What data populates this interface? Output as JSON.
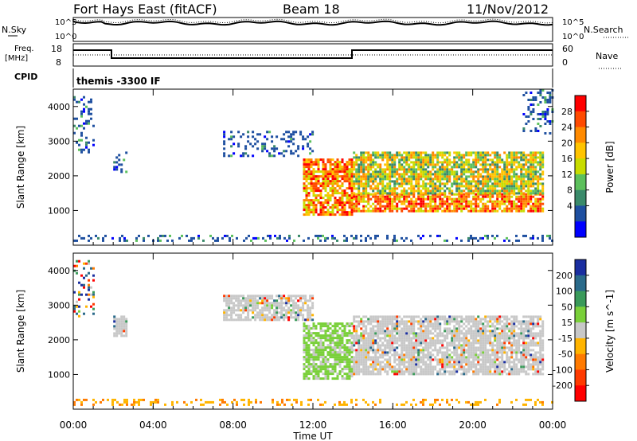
{
  "header": {
    "title": "Fort Hays East (fitACF)",
    "beam": "Beam 18",
    "date": "11/Nov/2012"
  },
  "noise_panel": {
    "left_label": "N.Sky",
    "right_label": "N.Search",
    "left_ticks": [
      "10^5",
      "10^0"
    ],
    "right_ticks": [
      "10^5",
      "10^0"
    ]
  },
  "freq_panel": {
    "left_label": "Freq.",
    "left_unit": "[MHz]",
    "right_label": "Nave",
    "left_ticks": [
      "18",
      "8"
    ],
    "right_ticks": [
      "60",
      "0"
    ]
  },
  "cpid_panel": {
    "label": "CPID",
    "program": "themis -3300 IF"
  },
  "x_axis": {
    "label": "Time UT",
    "ticks": [
      "00:00",
      "04:00",
      "08:00",
      "12:00",
      "16:00",
      "20:00",
      "00:00"
    ]
  },
  "chart_data": [
    {
      "type": "heatmap",
      "name": "power",
      "ylabel": "Slant Range [km]",
      "yticks": [
        1000,
        2000,
        3000,
        4000
      ],
      "ylim": [
        0,
        4500
      ],
      "xlim_hours": [
        0,
        24
      ],
      "colorbar": {
        "label": "Power [dB]",
        "ticks": [
          "28",
          "24",
          "20",
          "16",
          "12",
          "8",
          "4"
        ],
        "colors": [
          "#ff0000",
          "#ff4a00",
          "#ff8a00",
          "#ffc400",
          "#c8dc00",
          "#5cc05c",
          "#3a8a6a",
          "#1e4fa0",
          "#0000ff"
        ]
      },
      "regions": [
        {
          "t": [
            0.0,
            1.0
          ],
          "r": [
            2700,
            4300
          ],
          "level": "low"
        },
        {
          "t": [
            2.0,
            2.6
          ],
          "r": [
            2100,
            2700
          ],
          "level": "low"
        },
        {
          "t": [
            7.5,
            12.0
          ],
          "r": [
            2600,
            3300
          ],
          "level": "low"
        },
        {
          "t": [
            11.5,
            14.0
          ],
          "r": [
            900,
            2500
          ],
          "level": "high"
        },
        {
          "t": [
            14.0,
            23.5
          ],
          "r": [
            1000,
            1500
          ],
          "level": "high"
        },
        {
          "t": [
            14.0,
            23.5
          ],
          "r": [
            1500,
            2700
          ],
          "level": "mid"
        },
        {
          "t": [
            22.5,
            24.0
          ],
          "r": [
            3200,
            4500
          ],
          "level": "low"
        },
        {
          "t": [
            0.0,
            24.0
          ],
          "r": [
            100,
            300
          ],
          "level": "low"
        }
      ]
    },
    {
      "type": "heatmap",
      "name": "velocity",
      "ylabel": "Slant Range [km]",
      "yticks": [
        1000,
        2000,
        3000,
        4000
      ],
      "ylim": [
        0,
        4500
      ],
      "xlim_hours": [
        0,
        24
      ],
      "colorbar": {
        "label": "Velocity [m s^-1]",
        "ticks": [
          "200",
          "100",
          "50",
          "15",
          "-15",
          "-50",
          "-100",
          "-200"
        ],
        "colors": [
          "#1a2ea0",
          "#2a6a8a",
          "#3a9a5a",
          "#7ad03a",
          "#c8c8c8",
          "#ffb400",
          "#ff7a00",
          "#ff3a00",
          "#ff0000"
        ]
      },
      "regions": [
        {
          "t": [
            0.0,
            1.0
          ],
          "r": [
            2700,
            4300
          ],
          "level": "mixed"
        },
        {
          "t": [
            2.0,
            2.6
          ],
          "r": [
            2100,
            2700
          ],
          "level": "gray"
        },
        {
          "t": [
            7.5,
            12.0
          ],
          "r": [
            2600,
            3300
          ],
          "level": "gray"
        },
        {
          "t": [
            11.5,
            14.0
          ],
          "r": [
            900,
            2500
          ],
          "level": "green"
        },
        {
          "t": [
            14.0,
            23.5
          ],
          "r": [
            1000,
            2700
          ],
          "level": "gray"
        },
        {
          "t": [
            0.0,
            24.0
          ],
          "r": [
            100,
            300
          ],
          "level": "orange"
        }
      ]
    }
  ]
}
